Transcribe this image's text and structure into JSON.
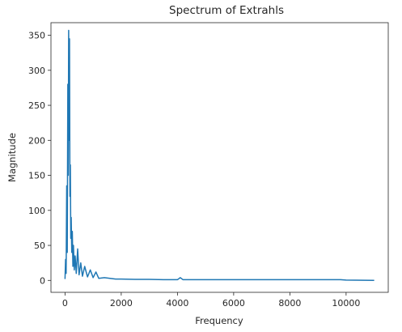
{
  "chart_data": {
    "type": "line",
    "title": "Spectrum of Extrahls",
    "xlabel": "Frequency",
    "ylabel": "Magnitude",
    "xlim": [
      -500,
      11500
    ],
    "ylim": [
      -17,
      368
    ],
    "xticks": [
      0,
      2000,
      4000,
      6000,
      8000,
      10000
    ],
    "yticks": [
      0,
      50,
      100,
      150,
      200,
      250,
      300,
      350
    ],
    "grid": false,
    "legend": false,
    "series_color": "#1f77b4",
    "series": [
      {
        "x": [
          0,
          20,
          40,
          60,
          80,
          100,
          115,
          130,
          145,
          160,
          175,
          190,
          205,
          220,
          240,
          260,
          280,
          300,
          330,
          360,
          400,
          450,
          500,
          560,
          620,
          700,
          800,
          900,
          1000,
          1100,
          1200,
          1400,
          1600,
          1800,
          2000,
          2500,
          3000,
          3500,
          4000,
          4100,
          4200,
          5000,
          6000,
          7000,
          8000,
          9000,
          9800,
          10000,
          11000
        ],
        "values": [
          2,
          30,
          10,
          135,
          40,
          280,
          150,
          357,
          200,
          345,
          120,
          165,
          60,
          90,
          40,
          70,
          20,
          50,
          15,
          35,
          10,
          45,
          8,
          25,
          6,
          20,
          5,
          15,
          4,
          12,
          3,
          4,
          3,
          2,
          2,
          1.5,
          1.5,
          1,
          1,
          4,
          1,
          1,
          1,
          1,
          1,
          1,
          1,
          0.5,
          0
        ]
      }
    ]
  }
}
